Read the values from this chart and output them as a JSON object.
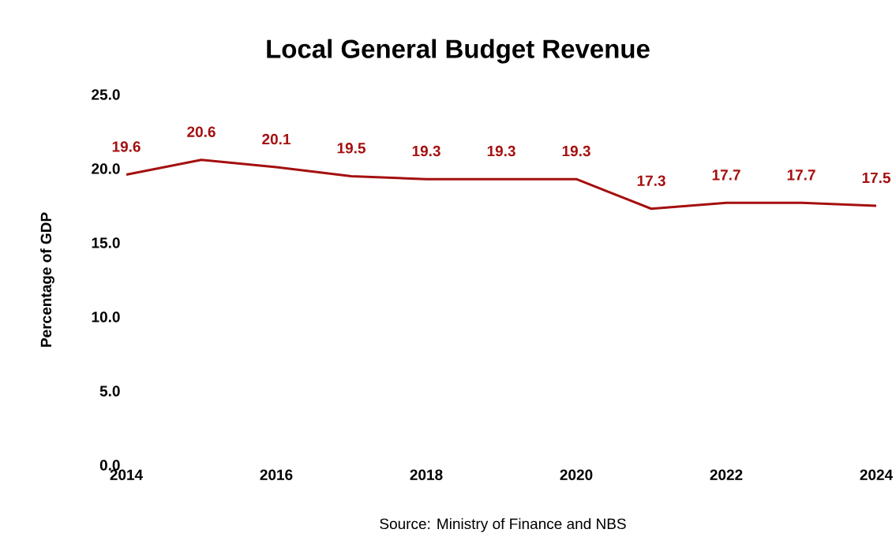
{
  "chart_data": {
    "type": "line",
    "title": "Local General Budget Revenue",
    "ylabel": "Percentage of GDP",
    "x": [
      2014,
      2015,
      2016,
      2017,
      2018,
      2019,
      2020,
      2021,
      2022,
      2023,
      2024
    ],
    "series": [
      {
        "color": "#a50f0f",
        "values": [
          19.6,
          20.6,
          20.1,
          19.5,
          19.3,
          19.3,
          19.3,
          17.3,
          17.7,
          17.7,
          17.5
        ]
      }
    ],
    "xlim": [
      2014,
      2024
    ],
    "xticks": [
      2014,
      2016,
      2018,
      2020,
      2022,
      2024
    ],
    "ylim": [
      0,
      25
    ],
    "yticks": [
      {
        "value": 0,
        "label": "0.0"
      },
      {
        "value": 5,
        "label": "5.0"
      },
      {
        "value": 10,
        "label": "10.0"
      },
      {
        "value": 15,
        "label": "15.0"
      },
      {
        "value": 20,
        "label": "20.0"
      },
      {
        "value": 25,
        "label": "25.0"
      }
    ],
    "data_labels": true,
    "grid": false,
    "legend": false,
    "marker": "none",
    "line_style": "solid",
    "annotations": [
      "Source: Ministry of Finance and NBS"
    ]
  }
}
